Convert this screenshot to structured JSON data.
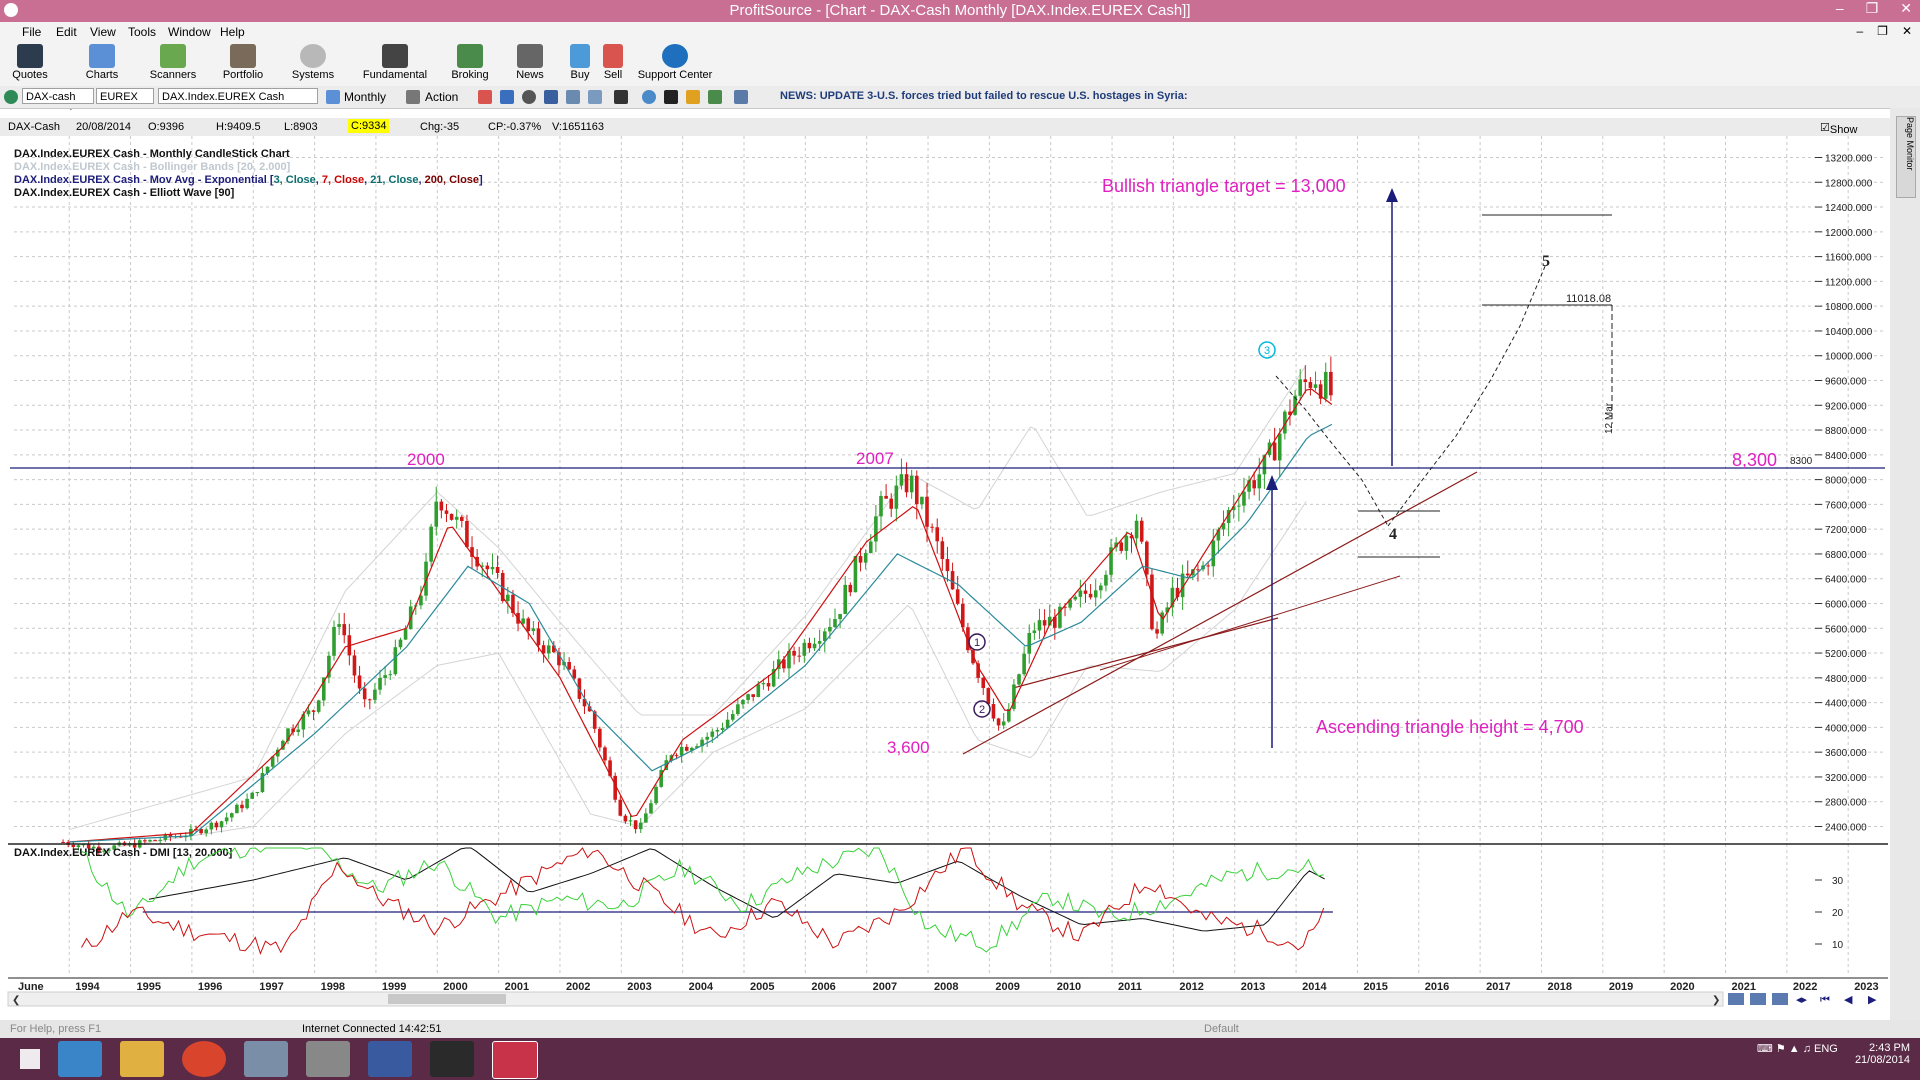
{
  "window": {
    "title": "ProfitSource - [Chart - DAX-Cash Monthly [DAX.Index.EUREX Cash]]"
  },
  "menu": [
    "File",
    "Edit",
    "View",
    "Tools",
    "Window",
    "Help"
  ],
  "toolbar": [
    "Quotes",
    "Charts",
    "Scanners",
    "Portfolio",
    "Systems",
    "Fundamental",
    "Broking",
    "News",
    "Buy",
    "Sell",
    "Support Center"
  ],
  "toolbar2": {
    "symbol": "DAX-cash",
    "exchange": "EUREX",
    "security": "DAX.Index.EUREX Cash",
    "period": "Monthly",
    "action": "Action",
    "news": "NEWS: UPDATE 3-U.S. forces tried but failed to rescue U.S. hostages in Syria:"
  },
  "infobar": {
    "symbol": "DAX-Cash",
    "date": "20/08/2014",
    "open": "O:9396",
    "high": "H:9409.5",
    "low": "L:8903",
    "close": "C:9334",
    "change": "Chg:-35",
    "cp": "CP:-0.37%",
    "volume": "V:1651163",
    "show_last": "Show Last"
  },
  "legend": {
    "line1": "DAX.Index.EUREX Cash - Monthly CandleStick Chart",
    "line2": "DAX.Index.EUREX Cash - Bollinger Bands [20, 2.000]",
    "line3_prefix": "DAX.Index.EUREX Cash - Mov Avg - Exponential [",
    "ma": [
      {
        "text": "3, Close",
        "color": "#0a6e6e"
      },
      {
        "text": "7, Close",
        "color": "#cc0000"
      },
      {
        "text": "21, Close",
        "color": "#0a6e6e"
      },
      {
        "text": "200, Close",
        "color": "#7a0000"
      }
    ],
    "line4": "DAX.Index.EUREX Cash - Elliott Wave [90]",
    "dmi": "DAX.Index.EUREX Cash - DMI [13, 20.000]"
  },
  "annotations": {
    "target": "Bullish triangle target = 13,000",
    "height": "Ascending triangle height = 4,700",
    "level": "8,300",
    "level_axis": "8300",
    "y2000": "2000",
    "y2007": "2007",
    "low": "3,600",
    "fib_level": "11018.08",
    "date_mark": "12 Mar",
    "wave1": "1",
    "wave2": "2",
    "wave3": "3",
    "wave4": "4",
    "wave5": "5"
  },
  "yaxis": [
    "13200.000",
    "12800.000",
    "12400.000",
    "12000.000",
    "11600.000",
    "11200.000",
    "10800.000",
    "10400.000",
    "10000.000",
    "9600.000",
    "9200.000",
    "8800.000",
    "8400.000",
    "8000.000",
    "7600.000",
    "7200.000",
    "6800.000",
    "6400.000",
    "6000.000",
    "5600.000",
    "5200.000",
    "4800.000",
    "4400.000",
    "4000.000",
    "3600.000",
    "3200.000",
    "2800.000",
    "2400.000"
  ],
  "dmi_axis": [
    "30",
    "20",
    "10"
  ],
  "xaxis": [
    "June",
    "1994",
    "1995",
    "1996",
    "1997",
    "1998",
    "1999",
    "2000",
    "2001",
    "2002",
    "2003",
    "2004",
    "2005",
    "2006",
    "2007",
    "2008",
    "2009",
    "2010",
    "2011",
    "2012",
    "2013",
    "2014",
    "2015",
    "2016",
    "2017",
    "2018",
    "2019",
    "2020",
    "2021",
    "2022",
    "2023"
  ],
  "status": {
    "left": "For Help, press F1",
    "connection": "Internet Connected 14:42:51",
    "mode": "Default"
  },
  "taskbar": {
    "lang": "ENG",
    "time": "2:43 PM",
    "date": "21/08/2014"
  },
  "colors": {
    "titlebar": "#c96f93",
    "taskbar": "#5a2a46",
    "annotation": "#e020c0",
    "navy": "#1c1c7a"
  },
  "chart_data": {
    "type": "candlestick",
    "title": "DAX.Index.EUREX Cash - Monthly CandleStick Chart",
    "anchors": [
      [
        1993.9,
        2150
      ],
      [
        1994.5,
        2050
      ],
      [
        1995.0,
        2100
      ],
      [
        1995.5,
        2200
      ],
      [
        1996.0,
        2300
      ],
      [
        1996.5,
        2500
      ],
      [
        1997.0,
        2900
      ],
      [
        1997.5,
        3900
      ],
      [
        1998.0,
        4300
      ],
      [
        1998.4,
        5800
      ],
      [
        1998.8,
        4300
      ],
      [
        1999.3,
        5100
      ],
      [
        1999.8,
        6400
      ],
      [
        2000.0,
        7800
      ],
      [
        2000.5,
        7000
      ],
      [
        2001.0,
        6300
      ],
      [
        2001.5,
        5500
      ],
      [
        2002.0,
        5100
      ],
      [
        2002.5,
        4200
      ],
      [
        2003.0,
        2600
      ],
      [
        2003.3,
        2350
      ],
      [
        2003.8,
        3600
      ],
      [
        2004.5,
        3900
      ],
      [
        2005.5,
        4900
      ],
      [
        2006.5,
        5800
      ],
      [
        2007.2,
        7500
      ],
      [
        2007.7,
        8000
      ],
      [
        2008.2,
        6800
      ],
      [
        2008.7,
        5200
      ],
      [
        2009.2,
        3900
      ],
      [
        2009.7,
        5600
      ],
      [
        2010.2,
        5800
      ],
      [
        2010.7,
        6300
      ],
      [
        2011.4,
        7400
      ],
      [
        2011.7,
        5400
      ],
      [
        2012.0,
        6200
      ],
      [
        2012.5,
        6600
      ],
      [
        2013.0,
        7700
      ],
      [
        2013.5,
        8200
      ],
      [
        2014.0,
        9400
      ],
      [
        2014.3,
        9700
      ],
      [
        2014.6,
        9334
      ]
    ],
    "ema3": [
      [
        1994.0,
        2150
      ],
      [
        1996,
        2300
      ],
      [
        1997.5,
        3700
      ],
      [
        1998.5,
        5300
      ],
      [
        1999.5,
        5600
      ],
      [
        2000.2,
        7300
      ],
      [
        2001,
        6200
      ],
      [
        2002,
        4800
      ],
      [
        2003.2,
        2500
      ],
      [
        2004,
        3800
      ],
      [
        2005.5,
        4900
      ],
      [
        2007,
        7000
      ],
      [
        2007.8,
        7600
      ],
      [
        2008.8,
        5000
      ],
      [
        2009.3,
        4200
      ],
      [
        2010,
        5700
      ],
      [
        2011.3,
        7200
      ],
      [
        2011.8,
        5700
      ],
      [
        2013,
        7600
      ],
      [
        2014.2,
        9500
      ],
      [
        2014.6,
        9200
      ]
    ],
    "ema21": [
      [
        1994.0,
        2150
      ],
      [
        1996,
        2250
      ],
      [
        1998,
        3900
      ],
      [
        1999.5,
        5300
      ],
      [
        2000.5,
        6600
      ],
      [
        2001.5,
        6000
      ],
      [
        2002.5,
        4300
      ],
      [
        2003.5,
        3300
      ],
      [
        2004.5,
        3800
      ],
      [
        2006,
        5000
      ],
      [
        2007.5,
        6800
      ],
      [
        2008.5,
        6300
      ],
      [
        2009.6,
        5300
      ],
      [
        2010.5,
        5700
      ],
      [
        2011.5,
        6600
      ],
      [
        2012.3,
        6400
      ],
      [
        2013.2,
        7300
      ],
      [
        2014.2,
        8700
      ],
      [
        2014.6,
        8900
      ]
    ],
    "bollinger": {
      "upper": [
        [
          1994.0,
          2350
        ],
        [
          1997,
          3200
        ],
        [
          1998.5,
          6200
        ],
        [
          2000.0,
          7800
        ],
        [
          2001,
          6900
        ],
        [
          2002,
          5700
        ],
        [
          2003.3,
          4200
        ],
        [
          2004.5,
          4200
        ],
        [
          2006,
          5800
        ],
        [
          2007.7,
          8100
        ],
        [
          2008.8,
          7500
        ],
        [
          2009.7,
          8900
        ],
        [
          2010.6,
          7400
        ],
        [
          2011.8,
          7800
        ],
        [
          2013,
          8100
        ],
        [
          2014.2,
          9900
        ]
      ],
      "lower": [
        [
          1994.0,
          1950
        ],
        [
          1997,
          2400
        ],
        [
          1998.5,
          3900
        ],
        [
          2000.0,
          5000
        ],
        [
          2001,
          5200
        ],
        [
          2002.5,
          2600
        ],
        [
          2003.3,
          2400
        ],
        [
          2004.5,
          3600
        ],
        [
          2006,
          4300
        ],
        [
          2007.7,
          6000
        ],
        [
          2008.8,
          3800
        ],
        [
          2009.7,
          3500
        ],
        [
          2010.6,
          5000
        ],
        [
          2011.8,
          4900
        ],
        [
          2013,
          5900
        ],
        [
          2014.2,
          7700
        ]
      ]
    },
    "level_8300": 8300,
    "ylim": [
      2150,
      13450
    ],
    "xlim": [
      1993.1,
      2023.6
    ],
    "dmi": {
      "ylim": [
        0,
        40
      ],
      "adx": [
        [
          1995.3,
          24
        ],
        [
          1997,
          30
        ],
        [
          1998.5,
          37
        ],
        [
          1999.5,
          30
        ],
        [
          2000.5,
          41
        ],
        [
          2001.5,
          26
        ],
        [
          2002.5,
          32
        ],
        [
          2003.5,
          40
        ],
        [
          2004.5,
          28
        ],
        [
          2005.5,
          18
        ],
        [
          2006.5,
          32
        ],
        [
          2007.5,
          29
        ],
        [
          2008.5,
          36
        ],
        [
          2009.5,
          25
        ],
        [
          2010.5,
          16
        ],
        [
          2011.5,
          18
        ],
        [
          2012.5,
          14
        ],
        [
          2013.5,
          16
        ],
        [
          2014.2,
          33
        ],
        [
          2014.5,
          30
        ]
      ],
      "plus_di": [
        [
          1994.2,
          38
        ],
        [
          1995,
          18
        ],
        [
          1996,
          36
        ],
        [
          1997.5,
          43
        ],
        [
          1998,
          40
        ],
        [
          1999,
          27
        ],
        [
          2000,
          36
        ],
        [
          2001,
          18
        ],
        [
          2002,
          24
        ],
        [
          2003,
          22
        ],
        [
          2004,
          34
        ],
        [
          2005,
          22
        ],
        [
          2006,
          33
        ],
        [
          2007.2,
          40
        ],
        [
          2008,
          15
        ],
        [
          2009,
          10
        ],
        [
          2010,
          25
        ],
        [
          2011,
          18
        ],
        [
          2012,
          24
        ],
        [
          2013,
          32
        ],
        [
          2014.2,
          34
        ],
        [
          2014.5,
          28
        ]
      ],
      "minus_di": [
        [
          1994.2,
          8
        ],
        [
          1995,
          20
        ],
        [
          1996,
          14
        ],
        [
          1997.5,
          8
        ],
        [
          1998.4,
          35
        ],
        [
          1999,
          25
        ],
        [
          2000,
          15
        ],
        [
          2001,
          25
        ],
        [
          2002.5,
          40
        ],
        [
          2003.5,
          26
        ],
        [
          2004.5,
          12
        ],
        [
          2005.5,
          23
        ],
        [
          2006.5,
          10
        ],
        [
          2007.5,
          20
        ],
        [
          2008.6,
          40
        ],
        [
          2009.5,
          22
        ],
        [
          2010.5,
          12
        ],
        [
          2011.6,
          30
        ],
        [
          2012.5,
          18
        ],
        [
          2013.5,
          14
        ],
        [
          2014.1,
          9
        ],
        [
          2014.5,
          20
        ]
      ]
    }
  }
}
